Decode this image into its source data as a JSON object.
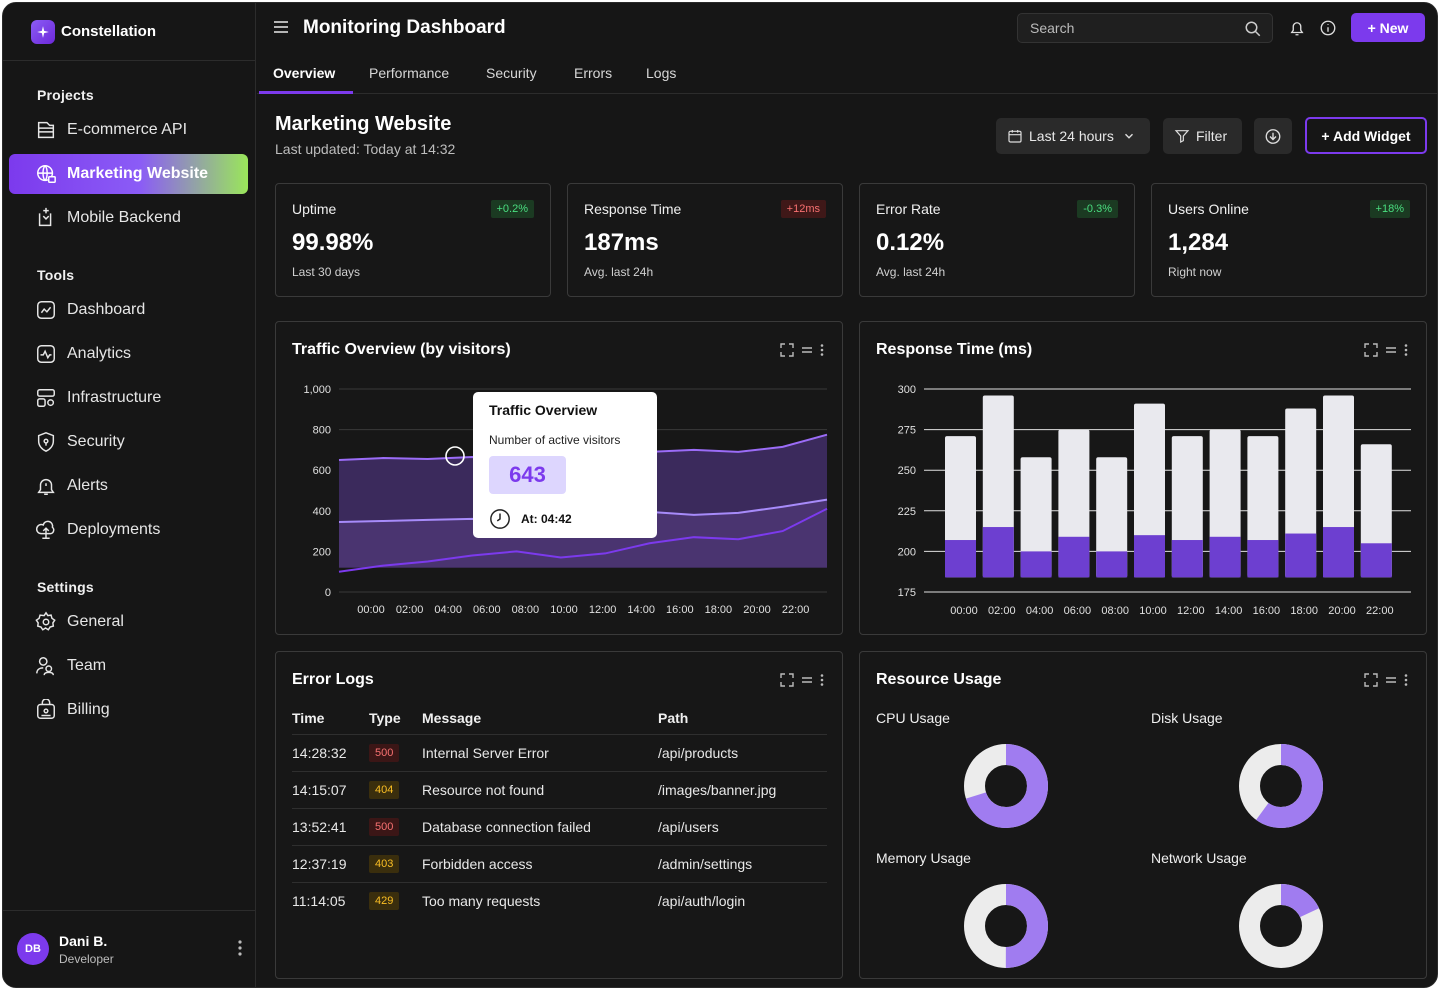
{
  "brand": {
    "name": "Constellation"
  },
  "sidebar": {
    "projects_label": "Projects",
    "projects": [
      {
        "label": "E-commerce API",
        "icon": "server-icon"
      },
      {
        "label": "Marketing Website",
        "icon": "globe-icon",
        "active": true
      },
      {
        "label": "Mobile Backend",
        "icon": "mobile-icon"
      }
    ],
    "tools_label": "Tools",
    "tools": [
      {
        "label": "Dashboard",
        "icon": "dashboard-icon"
      },
      {
        "label": "Analytics",
        "icon": "analytics-icon"
      },
      {
        "label": "Infrastructure",
        "icon": "infrastructure-icon"
      },
      {
        "label": "Security",
        "icon": "shield-icon"
      },
      {
        "label": "Alerts",
        "icon": "bell-icon"
      },
      {
        "label": "Deployments",
        "icon": "cloud-icon"
      }
    ],
    "settings_label": "Settings",
    "settings": [
      {
        "label": "General",
        "icon": "gear-icon"
      },
      {
        "label": "Team",
        "icon": "team-icon"
      },
      {
        "label": "Billing",
        "icon": "billing-icon"
      }
    ]
  },
  "user": {
    "initials": "DB",
    "name": "Dani B.",
    "role": "Developer"
  },
  "header": {
    "title": "Monitoring Dashboard",
    "search_placeholder": "Search",
    "new_label": "+ New"
  },
  "tabs": [
    "Overview",
    "Performance",
    "Security",
    "Errors",
    "Logs"
  ],
  "project": {
    "title": "Marketing Website",
    "last_updated": "Last updated: Today at 14:32",
    "range_label": "Last 24 hours",
    "filter_label": "Filter",
    "add_widget_label": "+ Add Widget"
  },
  "stats": [
    {
      "label": "Uptime",
      "value": "99.98%",
      "sub": "Last 30 days",
      "delta": "+0.2%",
      "tone": "green"
    },
    {
      "label": "Response Time",
      "value": "187ms",
      "sub": "Avg. last 24h",
      "delta": "+12ms",
      "tone": "red"
    },
    {
      "label": "Error Rate",
      "value": "0.12%",
      "sub": "Avg. last 24h",
      "delta": "-0.3%",
      "tone": "green"
    },
    {
      "label": "Users Online",
      "value": "1,284",
      "sub": "Right now",
      "delta": "+18%",
      "tone": "green"
    }
  ],
  "traffic": {
    "title": "Traffic Overview (by visitors)",
    "tooltip": {
      "title": "Traffic Overview",
      "subtitle": "Number of active visitors",
      "value": "643",
      "time": "At: 04:42"
    }
  },
  "response": {
    "title": "Response Time (ms)"
  },
  "chart_data": [
    {
      "type": "area",
      "title": "Traffic Overview (by visitors)",
      "ylim": [
        0,
        1000
      ],
      "yticks": [
        0,
        200,
        400,
        600,
        800,
        "1,000"
      ],
      "categories": [
        "00:00",
        "02:00",
        "04:00",
        "06:00",
        "08:00",
        "10:00",
        "12:00",
        "14:00",
        "16:00",
        "18:00",
        "20:00",
        "22:00"
      ],
      "series": [
        {
          "values": [
            650,
            660,
            655,
            665,
            650,
            670,
            680,
            690,
            700,
            690,
            715,
            775
          ]
        },
        {
          "values": [
            345,
            350,
            355,
            360,
            350,
            370,
            385,
            395,
            380,
            390,
            420,
            455
          ]
        },
        {
          "values": [
            100,
            130,
            150,
            180,
            200,
            170,
            190,
            240,
            270,
            260,
            300,
            410
          ]
        }
      ]
    },
    {
      "type": "bar",
      "title": "Response Time (ms)",
      "ylim": [
        175,
        300
      ],
      "yticks": [
        175,
        200,
        225,
        250,
        275,
        300
      ],
      "categories": [
        "00:00",
        "02:00",
        "04:00",
        "06:00",
        "08:00",
        "10:00",
        "12:00",
        "14:00",
        "16:00",
        "18:00",
        "20:00",
        "22:00"
      ],
      "series": [
        {
          "values": [
            271,
            296,
            258,
            275,
            258,
            291,
            271,
            275,
            271,
            288,
            296,
            266
          ]
        },
        {
          "values": [
            207,
            215,
            200,
            209,
            200,
            210,
            207,
            209,
            207,
            211,
            215,
            205
          ]
        }
      ]
    },
    {
      "type": "pie",
      "title": "CPU Usage",
      "values": [
        70,
        30
      ]
    },
    {
      "type": "pie",
      "title": "Disk Usage",
      "values": [
        60,
        40
      ]
    },
    {
      "type": "pie",
      "title": "Memory Usage",
      "values": [
        50,
        50
      ]
    },
    {
      "type": "pie",
      "title": "Network Usage",
      "values": [
        18,
        82
      ]
    }
  ],
  "error_logs": {
    "title": "Error Logs",
    "columns": [
      "Time",
      "Type",
      "Message",
      "Path"
    ],
    "rows": [
      {
        "time": "14:28:32",
        "code": "500",
        "message": "Internal Server Error",
        "path": "/api/products"
      },
      {
        "time": "14:15:07",
        "code": "404",
        "message": "Resource not found",
        "path": "/images/banner.jpg"
      },
      {
        "time": "13:52:41",
        "code": "500",
        "message": "Database connection failed",
        "path": "/api/users"
      },
      {
        "time": "12:37:19",
        "code": "403",
        "message": "Forbidden access",
        "path": "/admin/settings"
      },
      {
        "time": "11:14:05",
        "code": "429",
        "message": "Too many requests",
        "path": "/api/auth/login"
      }
    ]
  },
  "resources": {
    "title": "Resource Usage",
    "items": [
      "CPU Usage",
      "Disk Usage",
      "Memory Usage",
      "Network Usage"
    ]
  },
  "colors": {
    "accent": "#7c3aed",
    "accent_light": "#a78bfa",
    "bar_light": "#e9e9ee"
  }
}
